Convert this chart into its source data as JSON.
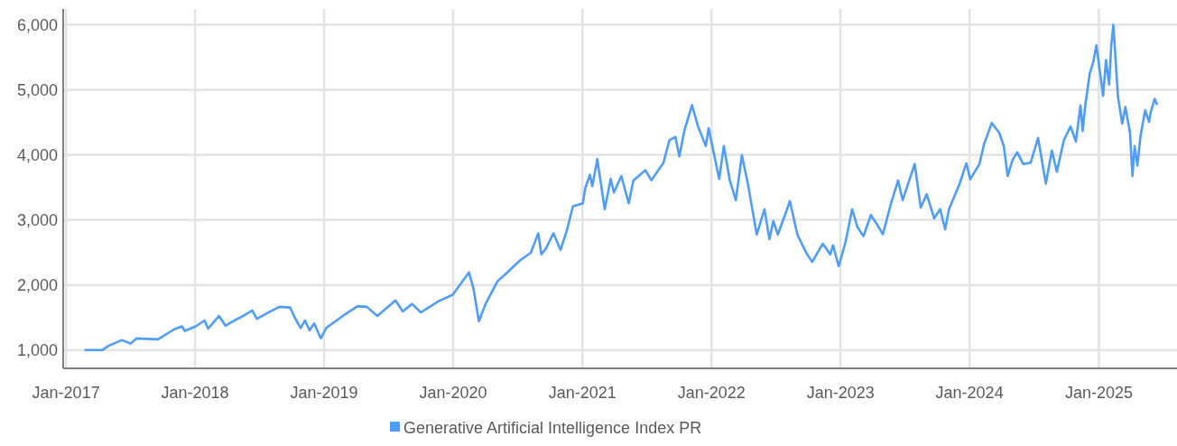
{
  "chart_data": {
    "type": "line",
    "legend": "bottom",
    "grid": true,
    "marker": "none",
    "line_style": "solid",
    "xlim": [
      "2016-12-24",
      "2025-08-10"
    ],
    "ylim": [
      720,
      6240
    ],
    "xticks": [
      {
        "value": "2017-01",
        "label": "Jan-2017"
      },
      {
        "value": "2018-01",
        "label": "Jan-2018"
      },
      {
        "value": "2019-01",
        "label": "Jan-2019"
      },
      {
        "value": "2020-01",
        "label": "Jan-2020"
      },
      {
        "value": "2021-01",
        "label": "Jan-2021"
      },
      {
        "value": "2022-01",
        "label": "Jan-2022"
      },
      {
        "value": "2023-01",
        "label": "Jan-2023"
      },
      {
        "value": "2024-01",
        "label": "Jan-2024"
      },
      {
        "value": "2025-01",
        "label": "Jan-2025"
      }
    ],
    "yticks": [
      {
        "value": 1000,
        "label": "1,000"
      },
      {
        "value": 2000,
        "label": "2,000"
      },
      {
        "value": 3000,
        "label": "3,000"
      },
      {
        "value": 4000,
        "label": "4,000"
      },
      {
        "value": 5000,
        "label": "5,000"
      },
      {
        "value": 6000,
        "label": "6,000"
      }
    ],
    "x": [
      "2017-02-25",
      "2017-04-13",
      "2017-05-01",
      "2017-06-08",
      "2017-07-03",
      "2017-07-20",
      "2017-09-18",
      "2017-11-03",
      "2017-11-25",
      "2017-12-03",
      "2018-01-03",
      "2018-01-28",
      "2018-02-07",
      "2018-03-10",
      "2018-03-28",
      "2018-04-22",
      "2018-05-14",
      "2018-06-12",
      "2018-06-25",
      "2018-07-25",
      "2018-08-28",
      "2018-09-27",
      "2018-10-10",
      "2018-10-27",
      "2018-11-08",
      "2018-11-21",
      "2018-12-04",
      "2018-12-23",
      "2019-01-07",
      "2019-02-23",
      "2019-04-06",
      "2019-05-02",
      "2019-06-01",
      "2019-07-22",
      "2019-08-12",
      "2019-09-07",
      "2019-10-02",
      "2019-11-22",
      "2019-12-31",
      "2020-02-15",
      "2020-02-28",
      "2020-03-14",
      "2020-04-02",
      "2020-05-06",
      "2020-05-28",
      "2020-07-09",
      "2020-08-08",
      "2020-08-29",
      "2020-09-07",
      "2020-09-20",
      "2020-10-11",
      "2020-10-31",
      "2020-11-18",
      "2020-12-05",
      "2021-01-02",
      "2021-01-09",
      "2021-01-22",
      "2021-01-29",
      "2021-02-12",
      "2021-03-05",
      "2021-03-22",
      "2021-03-31",
      "2021-04-21",
      "2021-05-12",
      "2021-05-25",
      "2021-06-28",
      "2021-07-15",
      "2021-08-18",
      "2021-09-04",
      "2021-09-21",
      "2021-10-02",
      "2021-10-16",
      "2021-11-07",
      "2021-11-24",
      "2021-12-16",
      "2021-12-24",
      "2022-01-06",
      "2022-01-23",
      "2022-02-05",
      "2022-02-22",
      "2022-03-11",
      "2022-03-28",
      "2022-04-14",
      "2022-05-09",
      "2022-05-31",
      "2022-06-14",
      "2022-06-25",
      "2022-07-08",
      "2022-08-11",
      "2022-09-01",
      "2022-09-26",
      "2022-10-13",
      "2022-11-12",
      "2022-12-03",
      "2022-12-11",
      "2022-12-27",
      "2023-01-15",
      "2023-02-03",
      "2023-02-18",
      "2023-03-07",
      "2023-03-28",
      "2023-04-14",
      "2023-05-01",
      "2023-05-23",
      "2023-06-13",
      "2023-06-26",
      "2023-07-30",
      "2023-08-16",
      "2023-09-02",
      "2023-09-23",
      "2023-10-10",
      "2023-10-24",
      "2023-11-04",
      "2023-12-04",
      "2023-12-23",
      "2024-01-03",
      "2024-01-29",
      "2024-02-11",
      "2024-03-04",
      "2024-03-25",
      "2024-04-07",
      "2024-04-18",
      "2024-05-02",
      "2024-05-15",
      "2024-06-01",
      "2024-06-22",
      "2024-07-13",
      "2024-08-04",
      "2024-08-21",
      "2024-09-04",
      "2024-09-24",
      "2024-10-13",
      "2024-10-28",
      "2024-11-10",
      "2024-11-16",
      "2024-11-23",
      "2024-12-06",
      "2024-12-16",
      "2024-12-25",
      "2025-01-13",
      "2025-01-21",
      "2025-01-30",
      "2025-02-05",
      "2025-02-11",
      "2025-02-24",
      "2025-03-08",
      "2025-03-17",
      "2025-03-30",
      "2025-04-06",
      "2025-04-12",
      "2025-04-20",
      "2025-04-29",
      "2025-05-12",
      "2025-05-23",
      "2025-05-28",
      "2025-06-08",
      "2025-06-14"
    ],
    "series": [
      {
        "name": "Generative Artificial Intelligence Index PR",
        "color": "#4f9cf9",
        "values": [
          1000,
          1000,
          1065,
          1155,
          1100,
          1180,
          1165,
          1320,
          1365,
          1295,
          1365,
          1455,
          1330,
          1525,
          1375,
          1455,
          1515,
          1610,
          1480,
          1570,
          1665,
          1655,
          1500,
          1340,
          1455,
          1305,
          1410,
          1180,
          1340,
          1525,
          1675,
          1665,
          1525,
          1765,
          1595,
          1710,
          1580,
          1755,
          1850,
          2195,
          1940,
          1445,
          1710,
          2060,
          2165,
          2380,
          2495,
          2795,
          2470,
          2565,
          2795,
          2540,
          2840,
          3210,
          3255,
          3490,
          3695,
          3520,
          3935,
          3165,
          3630,
          3420,
          3675,
          3255,
          3605,
          3765,
          3610,
          3875,
          4225,
          4275,
          3975,
          4365,
          4765,
          4435,
          4135,
          4410,
          4065,
          3630,
          4135,
          3605,
          3305,
          3995,
          3555,
          2775,
          3165,
          2705,
          2980,
          2775,
          3290,
          2775,
          2495,
          2355,
          2635,
          2470,
          2610,
          2290,
          2655,
          3165,
          2890,
          2750,
          3075,
          2935,
          2780,
          3235,
          3605,
          3305,
          3860,
          3190,
          3395,
          3025,
          3165,
          2855,
          3165,
          3555,
          3870,
          3625,
          3860,
          4160,
          4490,
          4340,
          4135,
          3675,
          3925,
          4040,
          3860,
          3880,
          4260,
          3555,
          4065,
          3740,
          4225,
          4435,
          4205,
          4760,
          4365,
          4735,
          5245,
          5425,
          5680,
          4905,
          5455,
          5080,
          5680,
          5995,
          4895,
          4480,
          4735,
          4340,
          3675,
          4135,
          3835,
          4295,
          4685,
          4505,
          4665,
          4860,
          4780
        ]
      }
    ]
  }
}
